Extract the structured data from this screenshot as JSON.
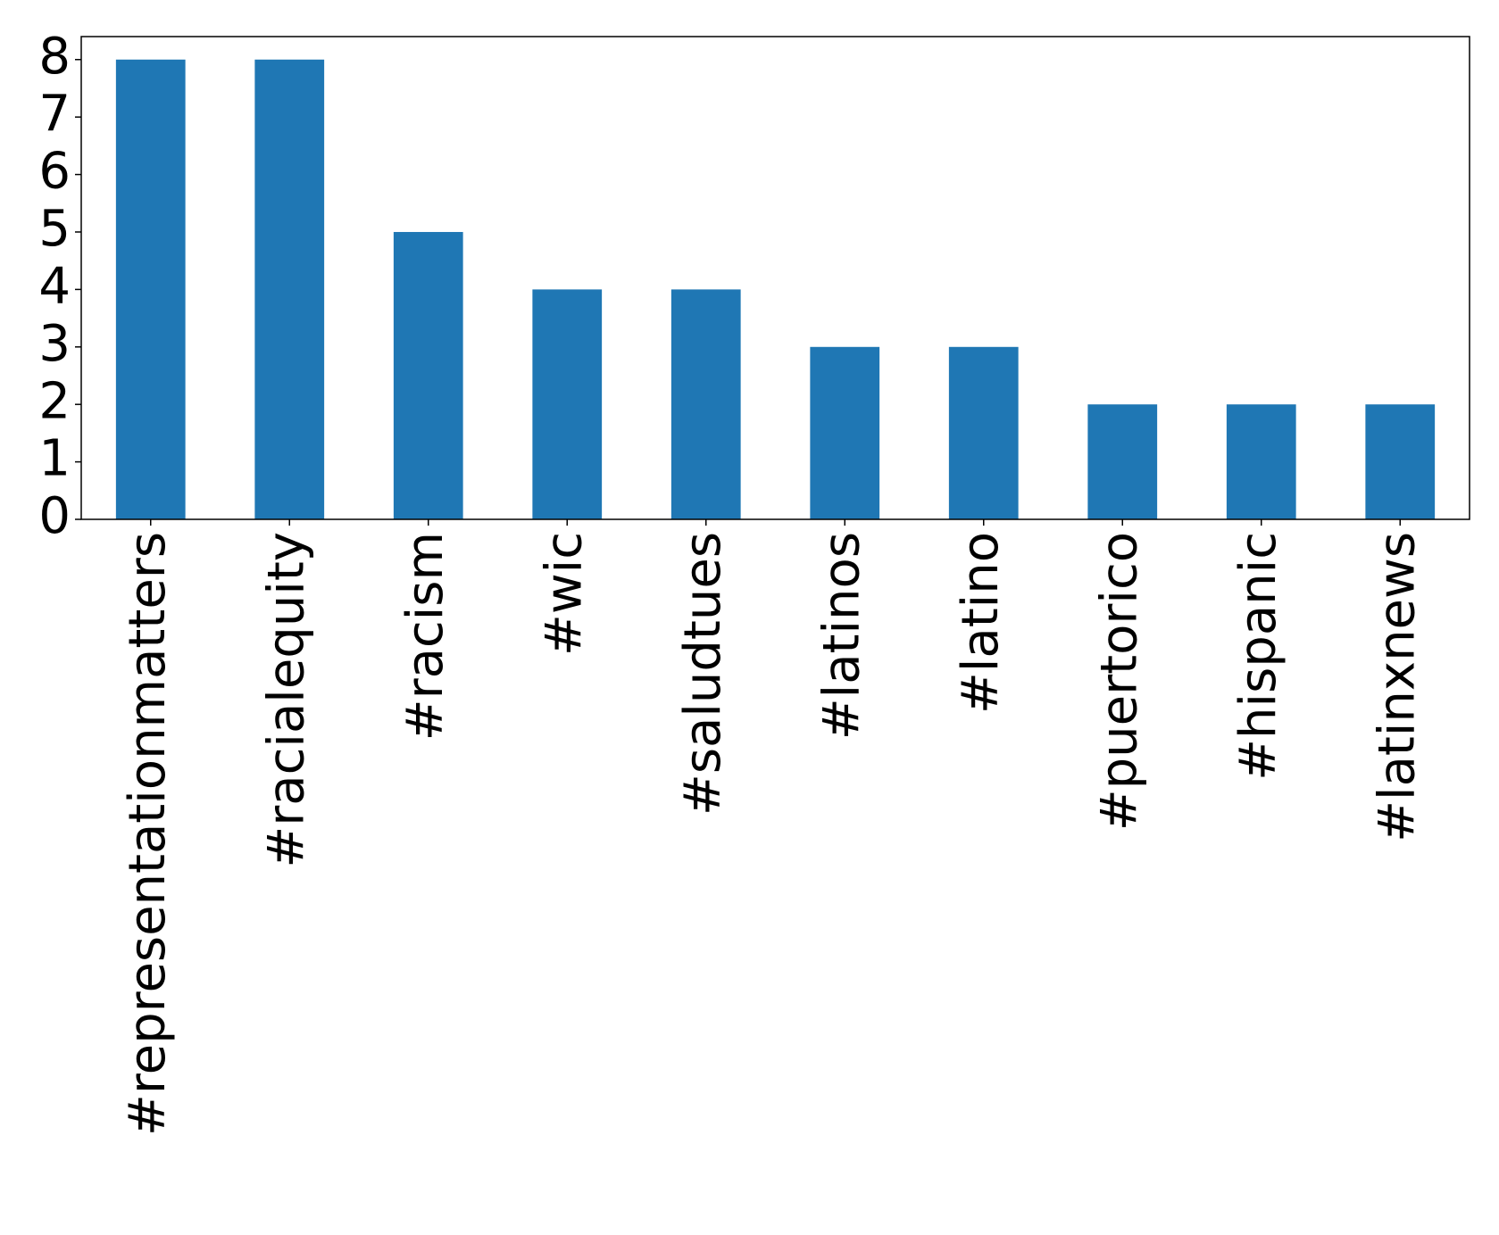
{
  "chart_data": {
    "type": "bar",
    "categories": [
      "#representationmatters",
      "#racialequity",
      "#racism",
      "#wic",
      "#saludtues",
      "#latinos",
      "#latino",
      "#puertorico",
      "#hispanic",
      "#latinxnews"
    ],
    "values": [
      8,
      8,
      5,
      4,
      4,
      3,
      3,
      2,
      2,
      2
    ],
    "color": "#1f77b4",
    "ylim": [
      0,
      8.4
    ],
    "yticks": [
      0,
      1,
      2,
      3,
      4,
      5,
      6,
      7,
      8
    ],
    "grid": false
  }
}
